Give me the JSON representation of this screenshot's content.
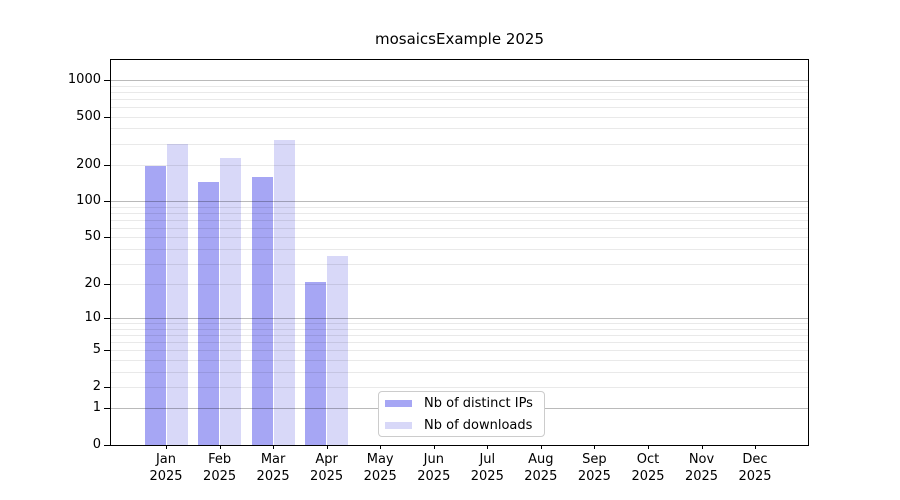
{
  "chart_data": {
    "type": "bar",
    "title": "mosaicsExample 2025",
    "categories": [
      "Jan",
      "Feb",
      "Mar",
      "Apr",
      "May",
      "Jun",
      "Jul",
      "Aug",
      "Sep",
      "Oct",
      "Nov",
      "Dec"
    ],
    "category_year": "2025",
    "series": [
      {
        "name": "Nb of distinct IPs",
        "color": "#a6a6f4",
        "values": [
          195,
          145,
          160,
          21,
          null,
          null,
          null,
          null,
          null,
          null,
          null,
          null
        ]
      },
      {
        "name": "Nb of downloads",
        "color": "#d8d8f8",
        "values": [
          300,
          230,
          320,
          35,
          null,
          null,
          null,
          null,
          null,
          null,
          null,
          null
        ]
      }
    ],
    "ylabel": "",
    "xlabel": "",
    "yscale": "log1p",
    "ylim": [
      0,
      1460
    ],
    "yticks": [
      0,
      1,
      2,
      5,
      10,
      20,
      50,
      100,
      200,
      500,
      1000
    ],
    "major_gridline_values": [
      1,
      10,
      100,
      1000
    ],
    "minor_gridline_values": [
      2,
      3,
      4,
      5,
      6,
      7,
      8,
      9,
      20,
      30,
      40,
      50,
      60,
      70,
      80,
      90,
      200,
      300,
      400,
      500,
      600,
      700,
      800,
      900
    ],
    "grid": true,
    "legend_position": "lower-center"
  }
}
